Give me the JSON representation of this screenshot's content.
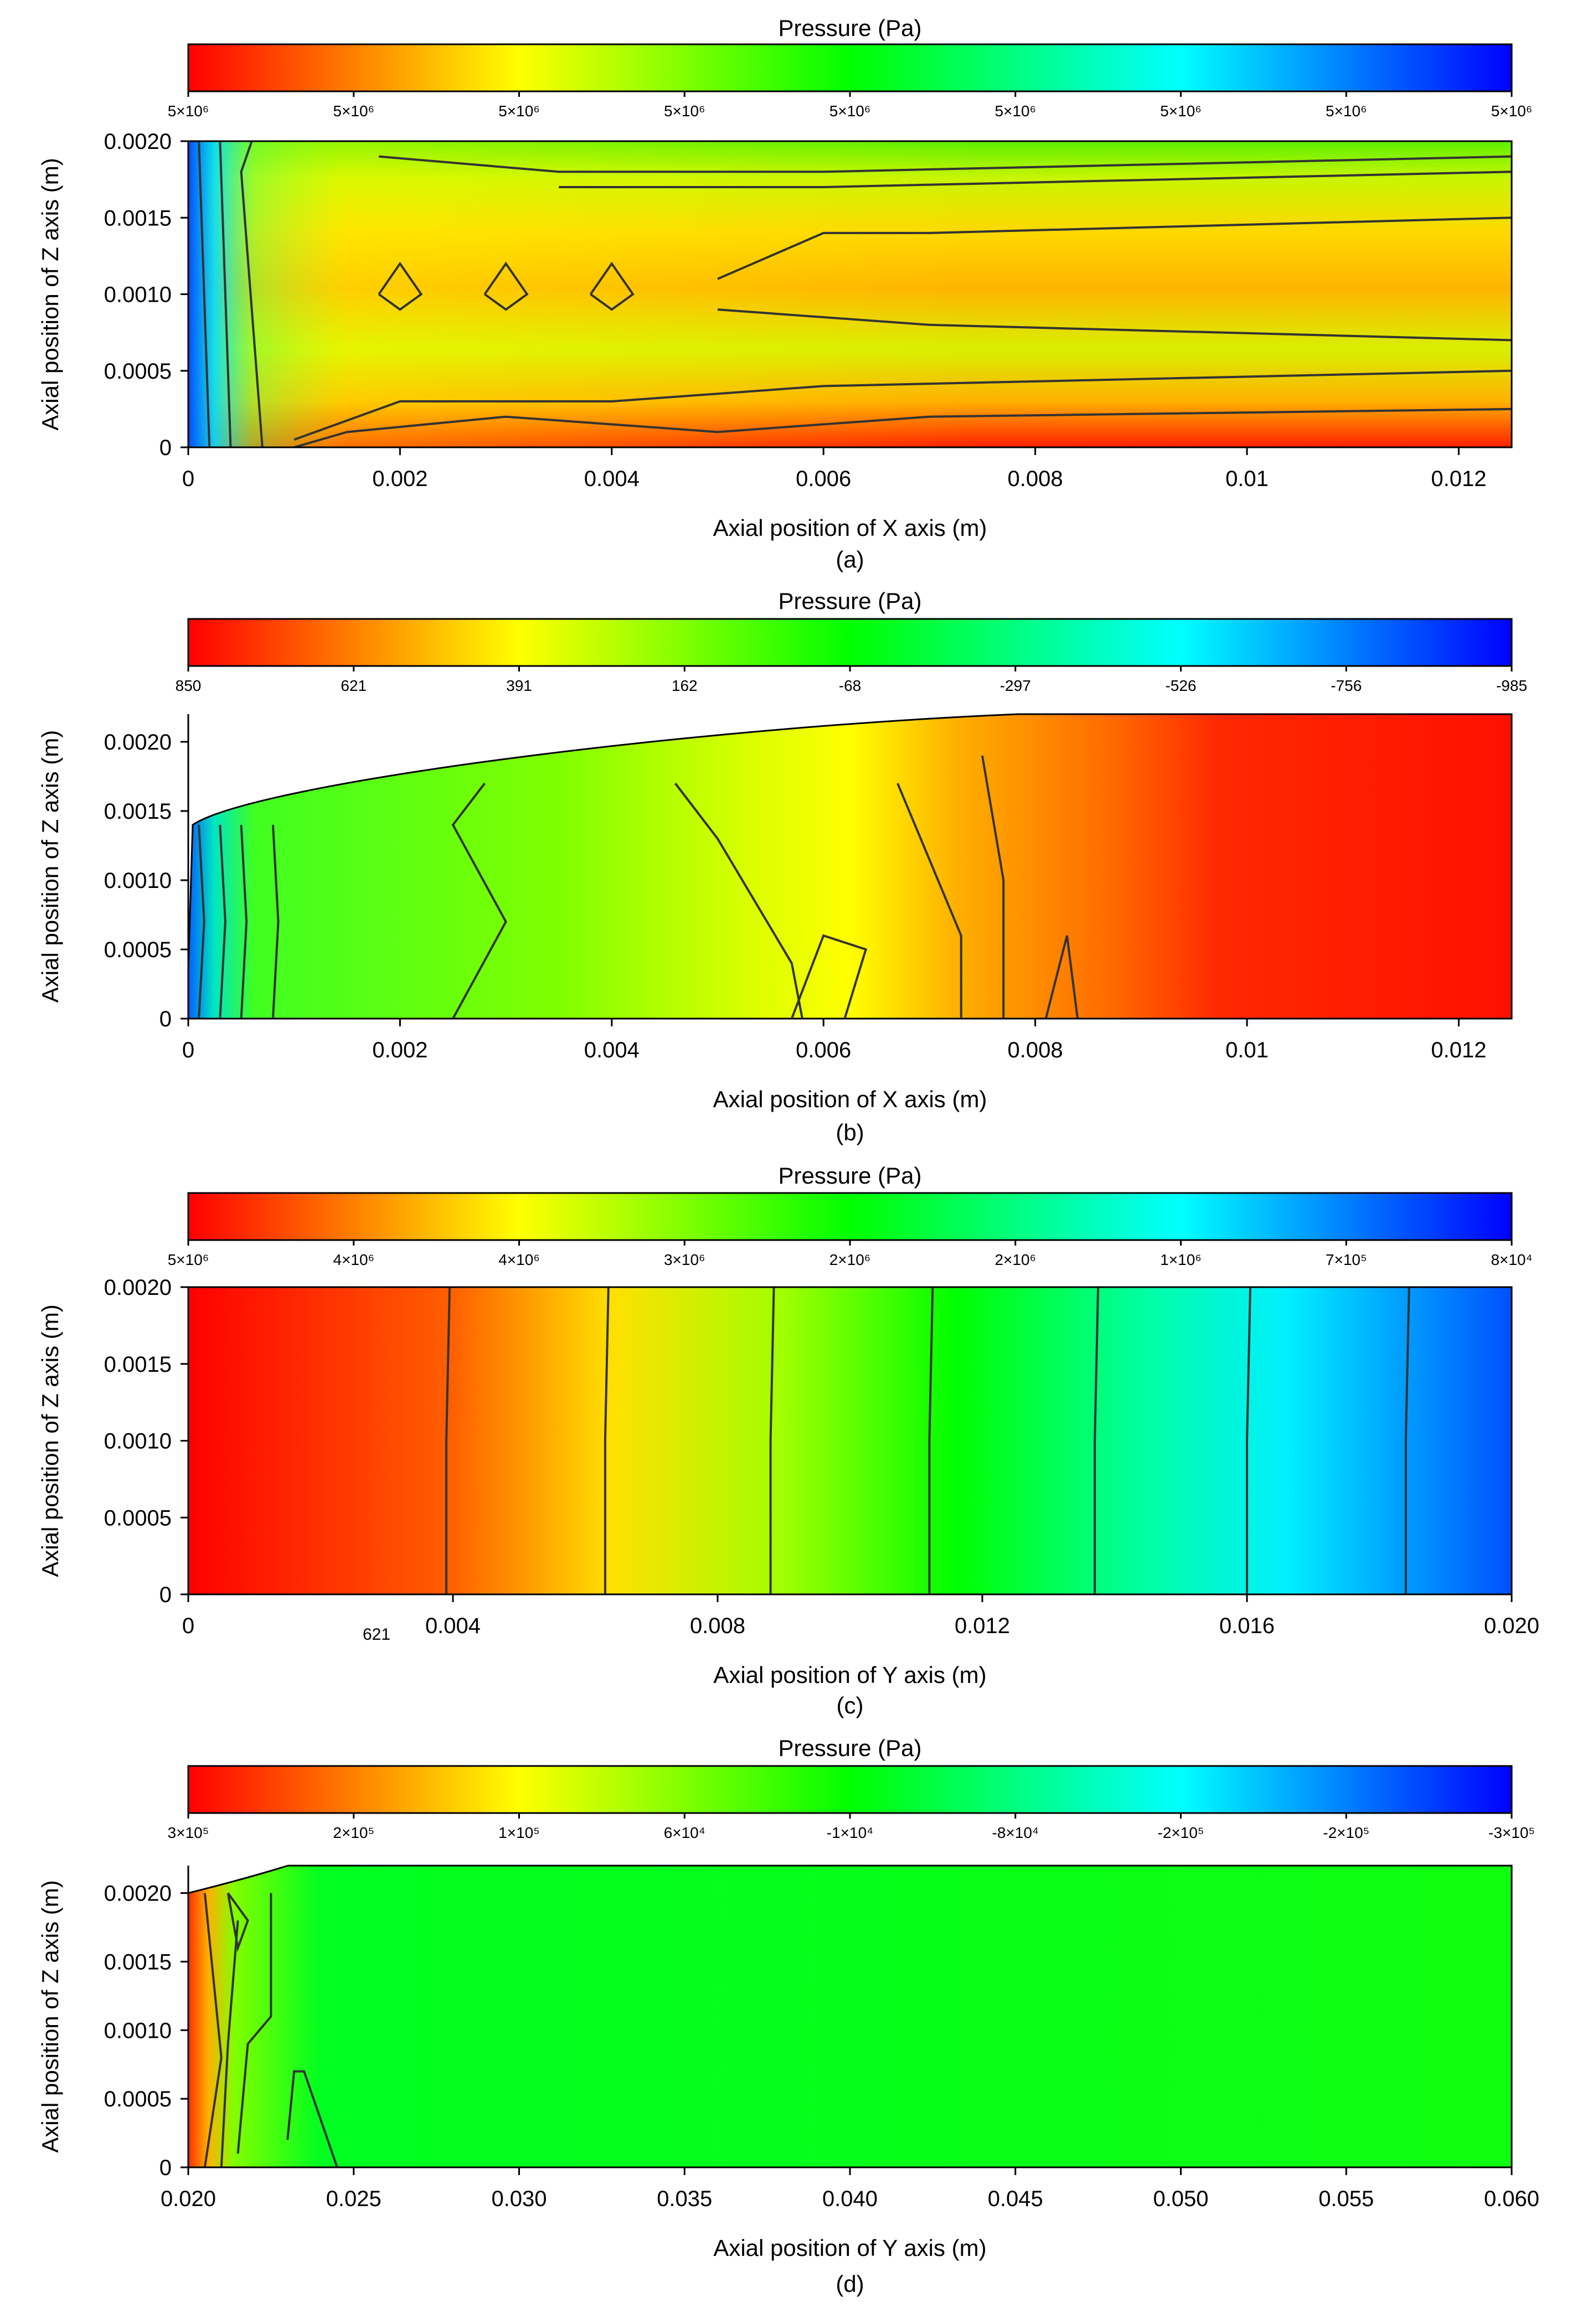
{
  "figure": {
    "colors": {
      "axis": "#000000",
      "contour": "#333333",
      "background": "#ffffff"
    }
  },
  "chart_data": [
    {
      "type": "heatmap",
      "panel_label": "(a)",
      "colorbar_title": "Pressure (Pa)",
      "colorbar_ticks": [
        "5×10⁶",
        "5×10⁶",
        "5×10⁶",
        "5×10⁶",
        "5×10⁶",
        "5×10⁶",
        "5×10⁶",
        "5×10⁶",
        "5×10⁶"
      ],
      "xlabel": "Axial position of X axis (m)",
      "ylabel": "Axial position of Z axis (m)",
      "xlim": [
        0,
        0.0125
      ],
      "ylim": [
        0,
        0.002
      ],
      "xticks": [
        0,
        0.002,
        0.004,
        0.006,
        0.008,
        0.01,
        0.012
      ],
      "xtick_labels": [
        "0",
        "0.002",
        "0.004",
        "0.006",
        "0.008",
        "0.01",
        "0.012"
      ],
      "yticks": [
        0,
        0.0005,
        0.001,
        0.0015,
        0.002
      ],
      "ytick_labels": [
        "0",
        "0.0005",
        "0.0010",
        "0.0015",
        "0.0020"
      ],
      "top_profile": "flat"
    },
    {
      "type": "heatmap",
      "panel_label": "(b)",
      "colorbar_title": "Pressure (Pa)",
      "colorbar_ticks": [
        "850",
        "621",
        "391",
        "162",
        "-68",
        "-297",
        "-526",
        "-756",
        "-985"
      ],
      "xlabel": "Axial position of X axis (m)",
      "ylabel": "Axial position of Z axis (m)",
      "xlim": [
        0,
        0.0125
      ],
      "ylim": [
        0,
        0.0022
      ],
      "xticks": [
        0,
        0.002,
        0.004,
        0.006,
        0.008,
        0.01,
        0.012
      ],
      "xtick_labels": [
        "0",
        "0.002",
        "0.004",
        "0.006",
        "0.008",
        "0.01",
        "0.012"
      ],
      "yticks": [
        0,
        0.0005,
        0.001,
        0.0015,
        0.002
      ],
      "ytick_labels": [
        "0",
        "0.0005",
        "0.0010",
        "0.0015",
        "0.0020"
      ],
      "top_profile": "curved"
    },
    {
      "type": "heatmap",
      "panel_label": "(c)",
      "colorbar_title": "Pressure (Pa)",
      "colorbar_ticks": [
        "5×10⁶",
        "4×10⁶",
        "4×10⁶",
        "3×10⁶",
        "2×10⁶",
        "2×10⁶",
        "1×10⁶",
        "7×10⁵",
        "8×10⁴"
      ],
      "xlabel": "Axial position of Y axis (m)",
      "ylabel": "Axial position of Z axis (m)",
      "xlim": [
        0,
        0.02
      ],
      "ylim": [
        0,
        0.002
      ],
      "xticks": [
        0,
        0.004,
        0.008,
        0.012,
        0.016,
        0.02
      ],
      "xtick_labels": [
        "0",
        "0.004",
        "0.008",
        "0.012",
        "0.016",
        "0.020"
      ],
      "yticks": [
        0,
        0.0005,
        0.001,
        0.0015,
        0.002
      ],
      "ytick_labels": [
        "0",
        "0.0005",
        "0.0010",
        "0.0015",
        "0.0020"
      ],
      "stray_label": "621",
      "top_profile": "flat"
    },
    {
      "type": "heatmap",
      "panel_label": "(d)",
      "colorbar_title": "Pressure (Pa)",
      "colorbar_ticks": [
        "3×10⁵",
        "2×10⁵",
        "1×10⁵",
        "6×10⁴",
        "-1×10⁴",
        "-8×10⁴",
        "-2×10⁵",
        "-2×10⁵",
        "-3×10⁵"
      ],
      "xlabel": "Axial position of Y axis (m)",
      "ylabel": "Axial position of Z axis (m)",
      "xlim": [
        0.02,
        0.06
      ],
      "ylim": [
        0,
        0.0022
      ],
      "xticks": [
        0.02,
        0.025,
        0.03,
        0.035,
        0.04,
        0.045,
        0.05,
        0.055,
        0.06
      ],
      "xtick_labels": [
        "0.020",
        "0.025",
        "0.030",
        "0.035",
        "0.040",
        "0.045",
        "0.050",
        "0.055",
        "0.060"
      ],
      "yticks": [
        0,
        0.0005,
        0.001,
        0.0015,
        0.002
      ],
      "ytick_labels": [
        "0",
        "0.0005",
        "0.0010",
        "0.0015",
        "0.0020"
      ],
      "top_profile": "corner"
    }
  ]
}
